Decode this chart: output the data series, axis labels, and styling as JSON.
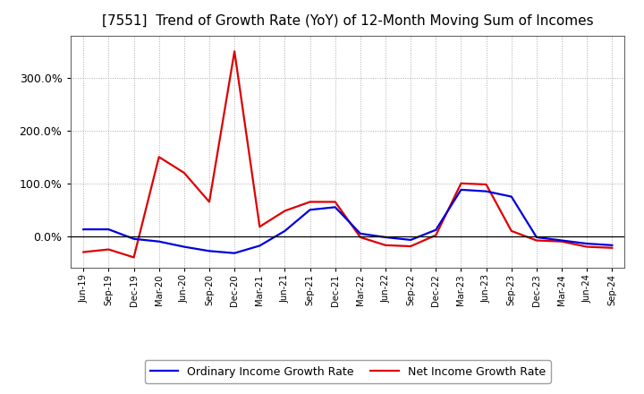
{
  "title": "[7551]  Trend of Growth Rate (YoY) of 12-Month Moving Sum of Incomes",
  "title_fontsize": 11,
  "background_color": "#ffffff",
  "plot_background_color": "#ffffff",
  "grid_color": "#aaaaaa",
  "line_color_ordinary": "#0000dd",
  "line_color_net": "#dd0000",
  "legend_ordinary": "Ordinary Income Growth Rate",
  "legend_net": "Net Income Growth Rate",
  "x_labels": [
    "Jun-19",
    "Sep-19",
    "Dec-19",
    "Mar-20",
    "Jun-20",
    "Sep-20",
    "Dec-20",
    "Mar-21",
    "Jun-21",
    "Sep-21",
    "Dec-21",
    "Mar-22",
    "Jun-22",
    "Sep-22",
    "Dec-22",
    "Mar-23",
    "Jun-23",
    "Sep-23",
    "Dec-23",
    "Mar-24",
    "Jun-24",
    "Sep-24"
  ],
  "ordinary_income_growth": [
    0.13,
    0.13,
    -0.05,
    -0.1,
    -0.2,
    -0.28,
    -0.32,
    -0.18,
    0.1,
    0.5,
    0.55,
    0.05,
    -0.02,
    -0.07,
    0.12,
    0.88,
    0.85,
    0.75,
    -0.02,
    -0.08,
    -0.14,
    -0.17
  ],
  "net_income_growth": [
    -0.3,
    -0.25,
    -0.4,
    1.5,
    1.2,
    0.65,
    3.5,
    0.18,
    0.48,
    0.65,
    0.65,
    -0.02,
    -0.17,
    -0.19,
    0.02,
    1.0,
    0.98,
    0.1,
    -0.08,
    -0.1,
    -0.2,
    -0.22
  ],
  "ylim_min": -0.6,
  "ylim_max": 3.8,
  "yticks": [
    0.0,
    1.0,
    2.0,
    3.0
  ],
  "ytick_labels": [
    "0.0%",
    "100.0%",
    "200.0%",
    "300.0%"
  ],
  "linewidth": 1.6
}
